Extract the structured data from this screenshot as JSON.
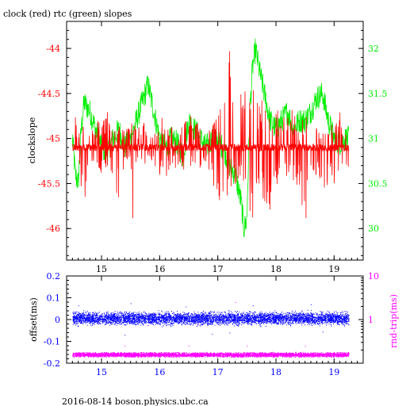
{
  "title": "clock (red) rtc (green) slopes",
  "footer": "2016-08-14 boson.physics.ubc.ca",
  "colors": {
    "clock": "#ff0000",
    "rtc": "#00ee00",
    "offset": "#0000ff",
    "rndtrip": "#ff00ff",
    "frame": "#000000"
  },
  "chart_data": [
    {
      "type": "line",
      "xlim": [
        14.4,
        19.5
      ],
      "x_ticks": [
        15,
        16,
        17,
        18,
        19
      ],
      "x_tick_labels": [
        "15",
        "16",
        "17",
        "18",
        "19"
      ],
      "ylabel": "clockslope",
      "ylim": [
        -46.35,
        -43.7
      ],
      "y_ticks": [
        -44,
        -44.5,
        -45,
        -45.5,
        -46
      ],
      "y_tick_labels": [
        "-44",
        "-44.5",
        "-45",
        "-45.5",
        "-46"
      ],
      "y2lim": [
        29.65,
        32.3
      ],
      "y2_ticks": [
        32,
        31.5,
        31,
        30.5,
        30
      ],
      "y2_tick_labels": [
        "32",
        "31.5",
        "31",
        "30.5",
        "30"
      ],
      "series": [
        {
          "name": "clock",
          "axis": "left",
          "baseline": -45.1,
          "x": [
            14.5,
            14.55,
            14.58,
            14.62,
            14.7,
            14.8,
            14.9,
            15.0,
            15.1,
            15.2,
            15.3,
            15.4,
            15.5,
            15.55,
            15.6,
            15.7,
            15.8,
            15.9,
            16.0,
            16.1,
            16.2,
            16.3,
            16.4,
            16.5,
            16.6,
            16.7,
            16.8,
            16.9,
            17.0,
            17.1,
            17.2,
            17.3,
            17.4,
            17.5,
            17.6,
            17.65,
            17.7,
            17.8,
            17.9,
            18.0,
            18.1,
            18.2,
            18.3,
            18.4,
            18.5,
            18.6,
            18.7,
            18.8,
            18.9,
            19.0,
            19.1,
            19.2,
            19.25
          ],
          "y_high": [
            -44.35,
            -44.7,
            -44.8,
            -44.9,
            -44.85,
            -44.9,
            -44.75,
            -44.85,
            -44.7,
            -44.9,
            -44.8,
            -44.9,
            -44.85,
            -44.7,
            -44.9,
            -44.8,
            -44.8,
            -44.85,
            -44.65,
            -44.8,
            -44.85,
            -44.9,
            -44.8,
            -44.7,
            -44.85,
            -44.8,
            -44.9,
            -44.85,
            -44.7,
            -44.4,
            -43.95,
            -44.6,
            -44.5,
            -44.45,
            -44.1,
            -44.3,
            -44.6,
            -44.5,
            -44.7,
            -44.6,
            -44.8,
            -44.6,
            -44.7,
            -44.9,
            -44.65,
            -44.9,
            -44.8,
            -44.9,
            -44.85,
            -44.75,
            -44.6,
            -44.8,
            -44.85
          ],
          "y_low": [
            -45.6,
            -46.2,
            -45.5,
            -45.4,
            -45.8,
            -45.3,
            -45.4,
            -45.5,
            -45.3,
            -45.4,
            -45.8,
            -45.3,
            -45.2,
            -46.1,
            -45.35,
            -45.4,
            -45.25,
            -45.3,
            -45.4,
            -45.6,
            -45.3,
            -45.35,
            -45.5,
            -45.3,
            -45.4,
            -45.35,
            -45.3,
            -45.4,
            -45.9,
            -45.6,
            -45.8,
            -45.5,
            -45.6,
            -45.7,
            -46.0,
            -45.8,
            -45.9,
            -45.7,
            -45.9,
            -45.5,
            -45.6,
            -45.4,
            -45.5,
            -45.6,
            -46.0,
            -45.5,
            -45.4,
            -45.7,
            -45.5,
            -45.6,
            -45.4,
            -45.5,
            -45.45
          ]
        },
        {
          "name": "rtc",
          "axis": "right",
          "x": [
            14.5,
            14.55,
            14.6,
            14.65,
            14.7,
            14.8,
            14.9,
            15.0,
            15.1,
            15.2,
            15.3,
            15.4,
            15.5,
            15.6,
            15.7,
            15.8,
            15.9,
            16.0,
            16.1,
            16.2,
            16.3,
            16.4,
            16.5,
            16.6,
            16.7,
            16.8,
            16.9,
            17.0,
            17.1,
            17.2,
            17.3,
            17.4,
            17.45,
            17.5,
            17.55,
            17.6,
            17.65,
            17.7,
            17.8,
            17.9,
            18.0,
            18.1,
            18.2,
            18.3,
            18.4,
            18.5,
            18.6,
            18.7,
            18.8,
            18.9,
            19.0,
            19.1,
            19.2,
            19.25
          ],
          "y": [
            31.0,
            30.6,
            30.5,
            31.1,
            31.4,
            31.3,
            31.1,
            30.9,
            30.85,
            31.0,
            31.1,
            30.9,
            31.0,
            31.2,
            31.4,
            31.6,
            31.3,
            31.0,
            30.9,
            31.0,
            30.95,
            30.8,
            31.2,
            31.1,
            31.0,
            30.9,
            31.0,
            30.95,
            30.9,
            30.7,
            30.6,
            30.3,
            30.0,
            30.1,
            31.3,
            31.8,
            32.0,
            31.8,
            31.5,
            31.2,
            31.1,
            31.2,
            31.3,
            31.1,
            31.2,
            31.2,
            31.3,
            31.45,
            31.5,
            31.2,
            31.0,
            30.95,
            31.0,
            31.0
          ]
        }
      ]
    },
    {
      "type": "scatter",
      "xlim": [
        14.4,
        19.5
      ],
      "x_ticks": [
        15,
        16,
        17,
        18,
        19
      ],
      "x_tick_labels": [
        "15",
        "16",
        "17",
        "18",
        "19"
      ],
      "ylabel": "offset(ms)",
      "ylim": [
        -0.2,
        0.2
      ],
      "y_ticks": [
        0.2,
        0.1,
        0,
        -0.1,
        -0.2
      ],
      "y_tick_labels": [
        "0.2",
        "0.1",
        "0",
        "-0.1",
        "-0.2"
      ],
      "y2label": "rnd-trip(ms)",
      "y2_scale": "log",
      "y2lim": [
        0.1,
        10
      ],
      "y2_ticks": [
        10,
        1
      ],
      "y2_tick_labels": [
        "10",
        "1"
      ],
      "series": [
        {
          "name": "offset",
          "axis": "left",
          "x_range": [
            14.5,
            19.25
          ],
          "y_center": 0.005,
          "y_spread": 0.04,
          "outliers": [
            [
              14.6,
              0.065
            ],
            [
              15.5,
              0.075
            ],
            [
              15.4,
              -0.07
            ],
            [
              16.45,
              0.06
            ],
            [
              16.9,
              -0.065
            ],
            [
              17.2,
              -0.06
            ],
            [
              17.6,
              0.065
            ],
            [
              18.6,
              0.07
            ],
            [
              18.8,
              -0.055
            ]
          ]
        },
        {
          "name": "rnd-trip",
          "axis": "right",
          "x_range": [
            14.5,
            19.25
          ],
          "y_center": 0.155,
          "y_spread_factor": 1.15,
          "outliers": [
            [
              15.4,
              0.25
            ],
            [
              16.5,
              0.25
            ],
            [
              17.5,
              0.25
            ],
            [
              18.5,
              0.25
            ],
            [
              15.8,
              0.75
            ],
            [
              16.65,
              0.8
            ],
            [
              17.3,
              2.5
            ]
          ]
        }
      ]
    }
  ]
}
